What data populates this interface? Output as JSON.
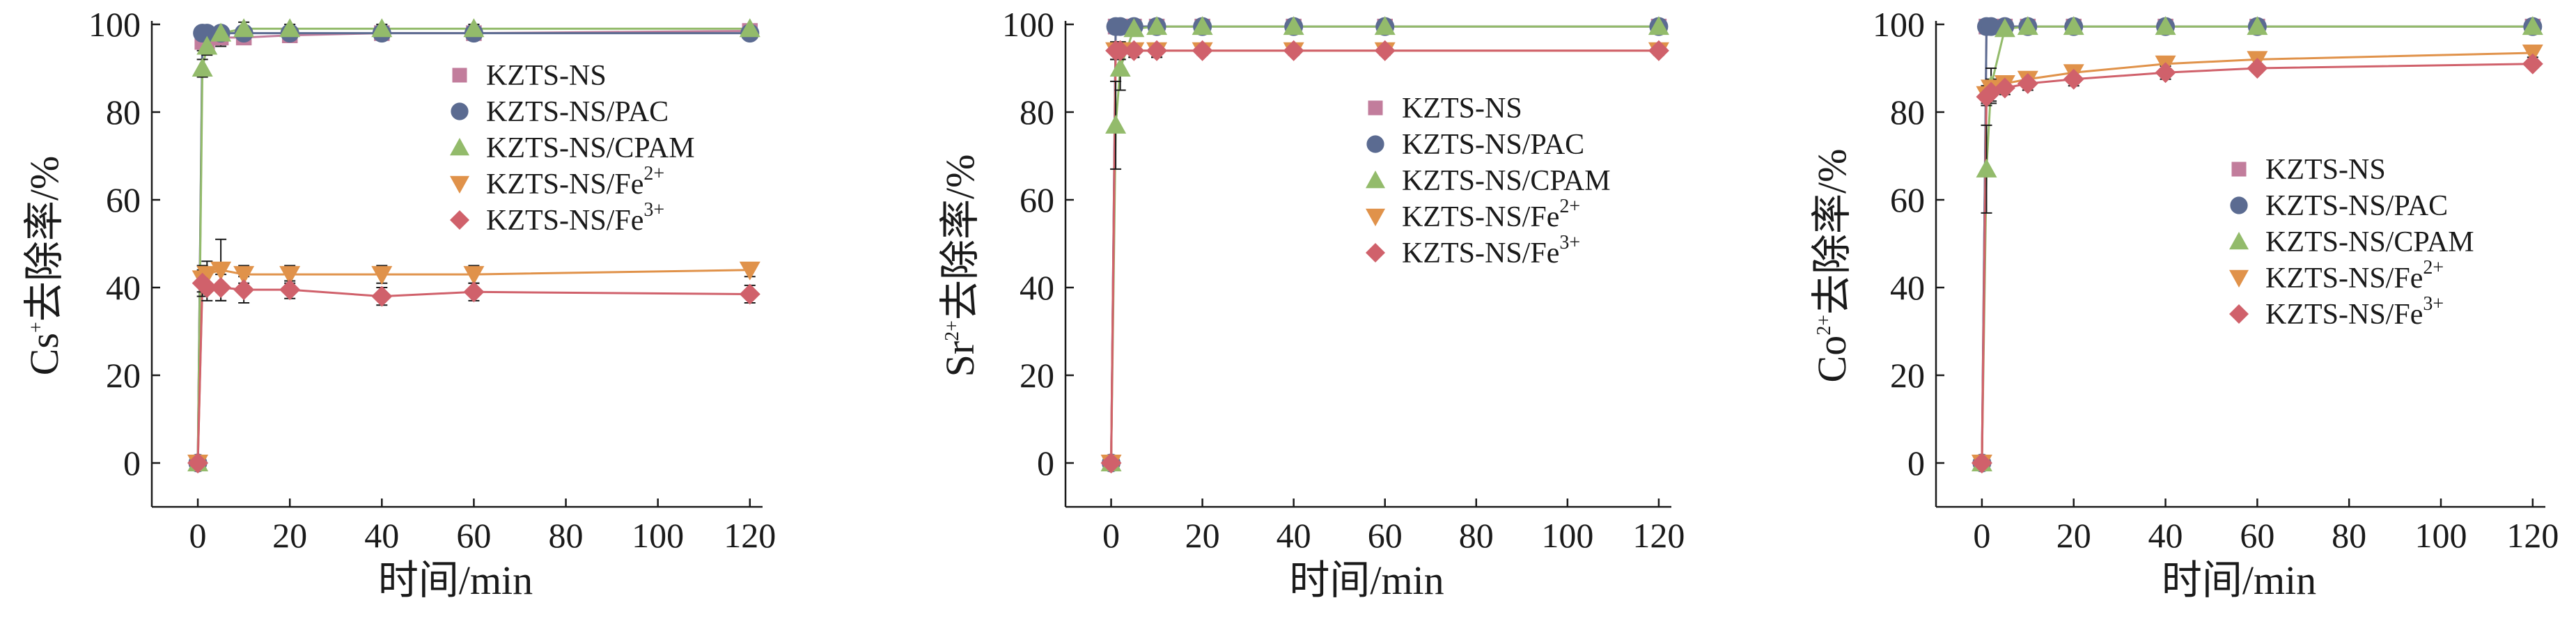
{
  "colors": {
    "KZTS-NS": "#c27d9c",
    "KZTS-NS/PAC": "#5b6b91",
    "KZTS-NS/CPAM": "#93bb6b",
    "KZTS-NS/Fe2+": "#e0924a",
    "KZTS-NS/Fe3+": "#d0616b"
  },
  "legend": [
    {
      "key": "KZTS-NS",
      "text": "KZTS-NS",
      "sup": "",
      "marker": "square"
    },
    {
      "key": "KZTS-NS/PAC",
      "text": "KZTS-NS/PAC",
      "sup": "",
      "marker": "circle"
    },
    {
      "key": "KZTS-NS/CPAM",
      "text": "KZTS-NS/CPAM",
      "sup": "",
      "marker": "triangle-up"
    },
    {
      "key": "KZTS-NS/Fe2+",
      "text": "KZTS-NS/Fe",
      "sup": "2+",
      "marker": "triangle-down"
    },
    {
      "key": "KZTS-NS/Fe3+",
      "text": "KZTS-NS/Fe",
      "sup": "3+",
      "marker": "diamond"
    }
  ],
  "chart_data": [
    {
      "type": "line",
      "ylabel": {
        "ion": "Cs",
        "sup": "+",
        "suffix": "去除率/%"
      },
      "xlabel": "时间/min",
      "xlim": [
        -10,
        122
      ],
      "ylim": [
        -10,
        100
      ],
      "xticks": [
        0,
        20,
        40,
        60,
        80,
        100,
        120
      ],
      "yticks": [
        0,
        20,
        40,
        60,
        80,
        100
      ],
      "legend_position": "right",
      "grid": false,
      "series": [
        {
          "name": "KZTS-NS",
          "x": [
            0,
            1,
            2,
            5,
            10,
            20,
            40,
            60,
            120
          ],
          "y": [
            0,
            96,
            96,
            97,
            97,
            97.5,
            98,
            98,
            98.5
          ],
          "err": [
            0,
            2,
            2,
            2,
            1.5,
            1.5,
            1,
            1,
            1
          ]
        },
        {
          "name": "KZTS-NS/PAC",
          "x": [
            0,
            1,
            2,
            5,
            10,
            20,
            40,
            60,
            120
          ],
          "y": [
            0,
            98,
            98,
            98,
            98,
            98,
            98,
            98,
            98
          ],
          "err": [
            0,
            1.5,
            1.5,
            1,
            1,
            1,
            1,
            1,
            1
          ]
        },
        {
          "name": "KZTS-NS/CPAM",
          "x": [
            0,
            1,
            2,
            5,
            10,
            20,
            40,
            60,
            120
          ],
          "y": [
            0,
            90,
            95,
            98,
            99,
            99,
            99,
            99,
            99
          ],
          "err": [
            0,
            2,
            2,
            1.5,
            1.5,
            1,
            1,
            1,
            1
          ]
        },
        {
          "name": "KZTS-NS/Fe2+",
          "x": [
            0,
            1,
            2,
            5,
            10,
            20,
            40,
            60,
            120
          ],
          "y": [
            0,
            42,
            43,
            44,
            43,
            43,
            43,
            43,
            44
          ],
          "err": [
            0,
            3,
            3,
            7,
            2,
            2,
            2,
            2,
            1.5
          ]
        },
        {
          "name": "KZTS-NS/Fe3+",
          "x": [
            0,
            1,
            2,
            5,
            10,
            20,
            40,
            60,
            120
          ],
          "y": [
            0,
            41,
            40,
            40,
            39.5,
            39.5,
            38,
            39,
            38.5
          ],
          "err": [
            0,
            3,
            3,
            3,
            3,
            2,
            2,
            2,
            2
          ]
        }
      ]
    },
    {
      "type": "line",
      "ylabel": {
        "ion": "Sr",
        "sup": "2+",
        "suffix": "去除率/%"
      },
      "xlabel": "时间/min",
      "xlim": [
        -10,
        122
      ],
      "ylim": [
        -10,
        100
      ],
      "xticks": [
        0,
        20,
        40,
        60,
        80,
        100,
        120
      ],
      "yticks": [
        0,
        20,
        40,
        60,
        80,
        100
      ],
      "legend_position": "right",
      "grid": false,
      "series": [
        {
          "name": "KZTS-NS",
          "x": [
            0,
            1,
            2,
            5,
            10,
            20,
            40,
            60,
            120
          ],
          "y": [
            0,
            99.5,
            99.5,
            99.5,
            99.5,
            99.5,
            99.5,
            99.5,
            99.5
          ],
          "err": [
            0,
            0.5,
            0.5,
            0.5,
            0.5,
            0.5,
            0.5,
            0.5,
            0.5
          ]
        },
        {
          "name": "KZTS-NS/PAC",
          "x": [
            0,
            1,
            2,
            5,
            10,
            20,
            40,
            60,
            120
          ],
          "y": [
            0,
            99.5,
            99.5,
            99.5,
            99.5,
            99.5,
            99.5,
            99.5,
            99.5
          ],
          "err": [
            0,
            0.5,
            0.5,
            0.5,
            0.5,
            0.5,
            0.5,
            0.5,
            0.5
          ]
        },
        {
          "name": "KZTS-NS/CPAM",
          "x": [
            0,
            1,
            2,
            5,
            10,
            20,
            40,
            60,
            120
          ],
          "y": [
            0,
            77,
            90,
            99,
            99.5,
            99.5,
            99.5,
            99.5,
            99.5
          ],
          "err": [
            0,
            10,
            5,
            1,
            0.5,
            0.5,
            0.5,
            0.5,
            0.5
          ]
        },
        {
          "name": "KZTS-NS/Fe2+",
          "x": [
            0,
            1,
            2,
            5,
            10,
            20,
            40,
            60,
            120
          ],
          "y": [
            0,
            94,
            94,
            94,
            94,
            94,
            94,
            94,
            94
          ],
          "err": [
            0,
            2,
            2,
            1.5,
            1.5,
            1,
            1,
            1,
            1
          ]
        },
        {
          "name": "KZTS-NS/Fe3+",
          "x": [
            0,
            1,
            2,
            5,
            10,
            20,
            40,
            60,
            120
          ],
          "y": [
            0,
            94,
            94,
            94,
            94,
            94,
            94,
            94,
            94
          ],
          "err": [
            0,
            2,
            2,
            1.5,
            1.5,
            1,
            1,
            1,
            1
          ]
        }
      ]
    },
    {
      "type": "line",
      "ylabel": {
        "ion": "Co",
        "sup": "2+",
        "suffix": "去除率/%"
      },
      "xlabel": "时间/min",
      "xlim": [
        -10,
        122
      ],
      "ylim": [
        -10,
        100
      ],
      "xticks": [
        0,
        20,
        40,
        60,
        80,
        100,
        120
      ],
      "yticks": [
        0,
        20,
        40,
        60,
        80,
        100
      ],
      "legend_position": "right",
      "grid": false,
      "series": [
        {
          "name": "KZTS-NS",
          "x": [
            0,
            1,
            2,
            5,
            10,
            20,
            40,
            60,
            120
          ],
          "y": [
            0,
            99.5,
            99.5,
            99.5,
            99.5,
            99.5,
            99.5,
            99.5,
            99.5
          ],
          "err": [
            0,
            0.5,
            0.5,
            0.5,
            0.5,
            0.5,
            0.5,
            0.5,
            0.5
          ]
        },
        {
          "name": "KZTS-NS/PAC",
          "x": [
            0,
            1,
            2,
            5,
            10,
            20,
            40,
            60,
            120
          ],
          "y": [
            0,
            99.5,
            99.5,
            99.5,
            99.5,
            99.5,
            99.5,
            99.5,
            99.5
          ],
          "err": [
            0,
            0.5,
            0.5,
            0.5,
            0.5,
            0.5,
            0.5,
            0.5,
            0.5
          ]
        },
        {
          "name": "KZTS-NS/CPAM",
          "x": [
            0,
            1,
            2,
            5,
            10,
            20,
            40,
            60,
            120
          ],
          "y": [
            0,
            67,
            86,
            99,
            99.5,
            99.5,
            99.5,
            99.5,
            99.5
          ],
          "err": [
            0,
            10,
            4,
            1,
            0.5,
            0.5,
            0.5,
            0.5,
            0.5
          ]
        },
        {
          "name": "KZTS-NS/Fe2+",
          "x": [
            0,
            1,
            2,
            5,
            10,
            20,
            40,
            60,
            120
          ],
          "y": [
            0,
            84,
            85.5,
            86.5,
            87.5,
            89,
            91,
            92,
            93.5
          ],
          "err": [
            0,
            2,
            2,
            1.5,
            1.5,
            1.5,
            1.5,
            1,
            1
          ]
        },
        {
          "name": "KZTS-NS/Fe3+",
          "x": [
            0,
            1,
            2,
            5,
            10,
            20,
            40,
            60,
            120
          ],
          "y": [
            0,
            83.5,
            84.5,
            85.5,
            86.5,
            87.5,
            89,
            90,
            91
          ],
          "err": [
            0,
            2,
            2,
            1.5,
            1.5,
            1.5,
            1.5,
            1,
            1
          ]
        }
      ]
    }
  ]
}
